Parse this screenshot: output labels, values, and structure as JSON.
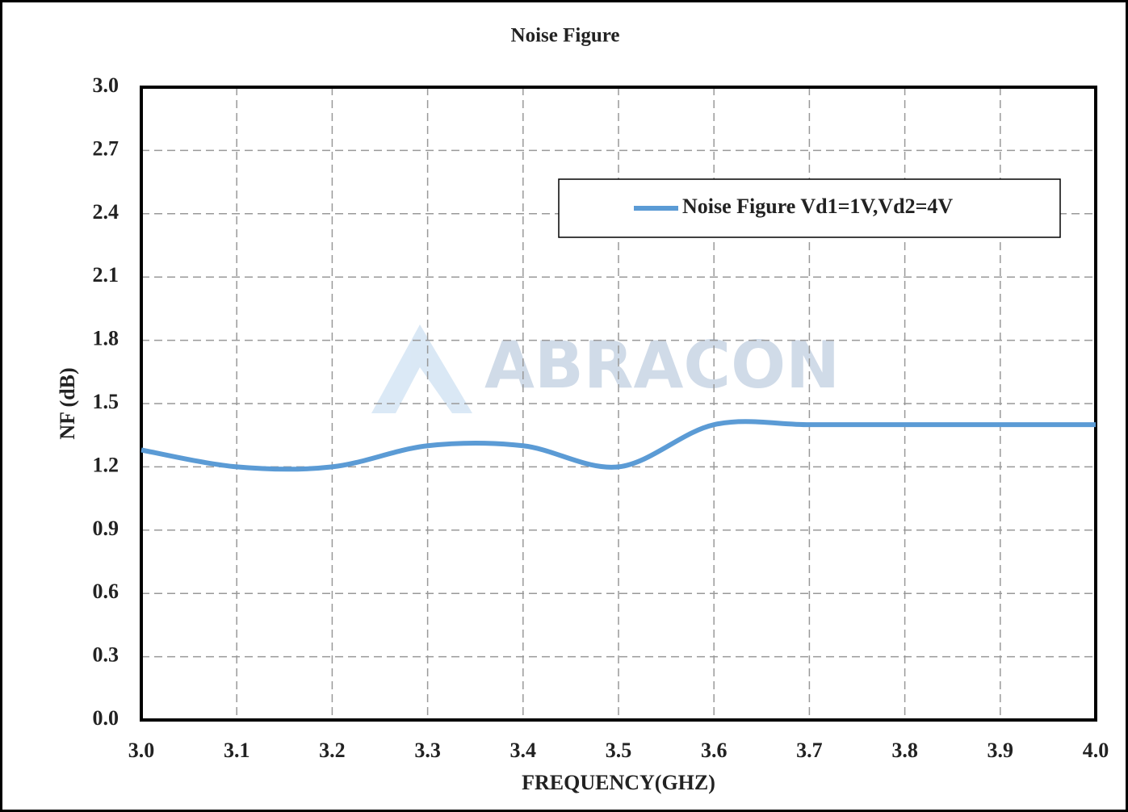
{
  "chart_data": {
    "type": "line",
    "title": "Noise Figure",
    "xlabel": "FREQUENCY(GHZ)",
    "ylabel": "NF (dB)",
    "watermark": "ABRACON",
    "x": [
      3.0,
      3.1,
      3.2,
      3.3,
      3.4,
      3.5,
      3.6,
      3.7,
      3.8,
      3.9,
      4.0
    ],
    "series": [
      {
        "name": "Noise Figure Vd1=1V,Vd2=4V",
        "color": "#5b9bd5",
        "values": [
          1.28,
          1.2,
          1.2,
          1.3,
          1.3,
          1.2,
          1.4,
          1.4,
          1.4,
          1.4,
          1.4
        ]
      }
    ],
    "xlim": [
      3.0,
      4.0
    ],
    "xticks": [
      {
        "value": 3.0,
        "label": "3.0"
      },
      3.1,
      3.2,
      3.3,
      3.4,
      3.5,
      3.6,
      3.7,
      3.8,
      3.9,
      {
        "value": 4.0,
        "label": "4.0"
      }
    ],
    "ylim": [
      0,
      3.0
    ],
    "yticks": [
      {
        "value": 0,
        "label": "0.0"
      },
      0.3,
      0.6,
      0.9,
      1.2,
      1.5,
      1.8,
      2.1,
      2.4,
      2.7,
      {
        "value": 3.0,
        "label": "3.0"
      }
    ],
    "grid": true,
    "legend": "upper right"
  }
}
